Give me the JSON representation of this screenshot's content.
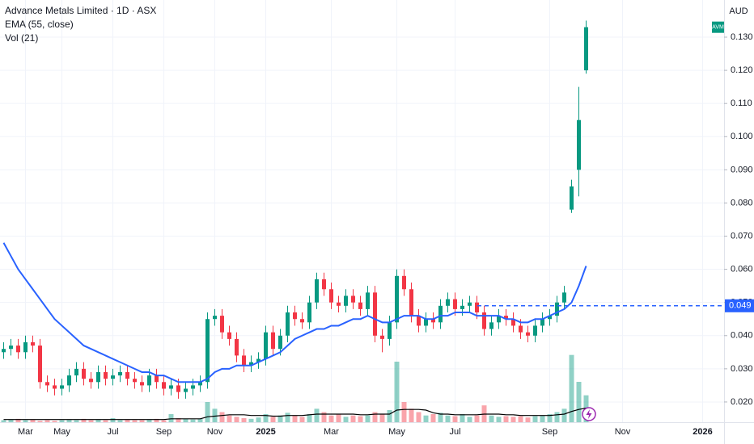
{
  "chart_data": {
    "type": "candlestick",
    "title": "Advance Metals Limited · 1D · ASX",
    "currency": "AUD",
    "symbol": "AVM",
    "categories": [
      null,
      null,
      null,
      "Mar",
      null,
      null,
      null,
      null,
      "May",
      null,
      null,
      null,
      null,
      null,
      null,
      "Jul",
      null,
      null,
      null,
      null,
      null,
      null,
      "Sep",
      null,
      null,
      null,
      null,
      null,
      null,
      "Nov",
      null,
      null,
      null,
      null,
      null,
      null,
      "2025",
      null,
      null,
      null,
      null,
      null,
      null,
      null,
      null,
      "Mar",
      null,
      null,
      null,
      null,
      null,
      null,
      null,
      null,
      "May",
      null,
      null,
      null,
      null,
      null,
      null,
      null,
      "Jul",
      null,
      null,
      null,
      null,
      null,
      null,
      null,
      null,
      null,
      null,
      null,
      null,
      "Sep",
      null,
      null,
      null,
      null,
      null,
      null,
      null,
      null,
      null,
      "Nov",
      null,
      null,
      null,
      null,
      null,
      null,
      null,
      null,
      null,
      null,
      "2026",
      null,
      null
    ],
    "open": [
      0.035,
      0.036,
      0.037,
      0.035,
      0.038,
      0.037,
      0.026,
      0.025,
      0.024,
      0.025,
      0.028,
      0.03,
      0.027,
      0.026,
      0.029,
      0.027,
      0.028,
      0.029,
      0.027,
      0.026,
      0.025,
      0.028,
      0.026,
      0.024,
      0.025,
      0.023,
      0.024,
      0.025,
      0.026,
      0.045,
      0.046,
      0.041,
      0.039,
      0.034,
      0.031,
      0.032,
      0.033,
      0.041,
      0.036,
      0.04,
      0.047,
      0.045,
      0.044,
      0.05,
      0.057,
      0.054,
      0.05,
      0.049,
      0.052,
      0.05,
      0.048,
      0.053,
      0.04,
      0.039,
      0.044,
      0.058,
      0.054,
      0.046,
      0.043,
      0.045,
      0.044,
      0.049,
      0.051,
      0.048,
      0.049,
      0.05,
      0.047,
      0.042,
      0.044,
      0.046,
      0.045,
      0.043,
      0.041,
      0.04,
      0.043,
      0.045,
      0.046,
      0.05,
      0.078,
      0.09,
      0.12,
      null,
      null,
      null,
      null,
      null,
      null,
      null,
      null,
      null,
      null,
      null,
      null,
      null,
      null,
      null,
      null,
      null,
      null
    ],
    "high": [
      0.038,
      0.039,
      0.039,
      0.04,
      0.04,
      0.039,
      0.028,
      0.027,
      0.027,
      0.03,
      0.032,
      0.032,
      0.029,
      0.031,
      0.031,
      0.03,
      0.031,
      0.031,
      0.029,
      0.028,
      0.03,
      0.03,
      0.028,
      0.027,
      0.027,
      0.026,
      0.027,
      0.028,
      0.047,
      0.048,
      0.048,
      0.043,
      0.041,
      0.036,
      0.034,
      0.035,
      0.043,
      0.043,
      0.042,
      0.049,
      0.049,
      0.047,
      0.052,
      0.059,
      0.059,
      0.056,
      0.052,
      0.054,
      0.054,
      0.052,
      0.055,
      0.055,
      0.042,
      0.046,
      0.06,
      0.06,
      0.056,
      0.048,
      0.047,
      0.047,
      0.051,
      0.053,
      0.053,
      0.051,
      0.052,
      0.052,
      0.049,
      0.046,
      0.048,
      0.048,
      0.047,
      0.045,
      0.043,
      0.045,
      0.047,
      0.048,
      0.052,
      0.055,
      0.087,
      0.115,
      0.135,
      null,
      null,
      null,
      null,
      null,
      null,
      null,
      null,
      null,
      null,
      null,
      null,
      null,
      null,
      null,
      null,
      null,
      null
    ],
    "low": [
      0.033,
      0.034,
      0.033,
      0.033,
      0.035,
      0.024,
      0.023,
      0.022,
      0.022,
      0.023,
      0.026,
      0.025,
      0.024,
      0.024,
      0.025,
      0.025,
      0.026,
      0.025,
      0.024,
      0.023,
      0.023,
      0.024,
      0.022,
      0.022,
      0.021,
      0.021,
      0.022,
      0.023,
      0.024,
      0.043,
      0.039,
      0.037,
      0.032,
      0.029,
      0.029,
      0.03,
      0.031,
      0.034,
      0.034,
      0.038,
      0.043,
      0.042,
      0.042,
      0.048,
      0.052,
      0.048,
      0.047,
      0.047,
      0.048,
      0.046,
      0.046,
      0.038,
      0.035,
      0.037,
      0.042,
      0.052,
      0.044,
      0.041,
      0.041,
      0.042,
      0.042,
      0.047,
      0.046,
      0.046,
      0.047,
      0.045,
      0.04,
      0.04,
      0.042,
      0.043,
      0.041,
      0.039,
      0.038,
      0.038,
      0.041,
      0.043,
      0.044,
      0.048,
      0.077,
      0.082,
      0.119,
      null,
      null,
      null,
      null,
      null,
      null,
      null,
      null,
      null,
      null,
      null,
      null,
      null,
      null,
      null,
      null,
      null,
      null
    ],
    "close": [
      0.036,
      0.037,
      0.035,
      0.038,
      0.037,
      0.026,
      0.025,
      0.024,
      0.025,
      0.028,
      0.03,
      0.027,
      0.026,
      0.029,
      0.027,
      0.028,
      0.029,
      0.027,
      0.026,
      0.025,
      0.028,
      0.026,
      0.024,
      0.025,
      0.023,
      0.024,
      0.025,
      0.026,
      0.045,
      0.046,
      0.041,
      0.039,
      0.034,
      0.031,
      0.032,
      0.033,
      0.041,
      0.036,
      0.04,
      0.047,
      0.045,
      0.044,
      0.05,
      0.057,
      0.054,
      0.05,
      0.049,
      0.052,
      0.05,
      0.048,
      0.053,
      0.04,
      0.039,
      0.044,
      0.058,
      0.054,
      0.046,
      0.043,
      0.045,
      0.044,
      0.049,
      0.051,
      0.048,
      0.049,
      0.05,
      0.047,
      0.042,
      0.044,
      0.046,
      0.045,
      0.043,
      0.041,
      0.04,
      0.043,
      0.045,
      0.046,
      0.05,
      0.053,
      0.085,
      0.105,
      0.133,
      null,
      null,
      null,
      null,
      null,
      null,
      null,
      null,
      null,
      null,
      null,
      null,
      null,
      null,
      null,
      null,
      null,
      null
    ],
    "up_color": "#089981",
    "down_color": "#f23645",
    "ema": {
      "name": "EMA (55, close)",
      "color": "#2962ff",
      "values": [
        0.068,
        0.064,
        0.06,
        0.057,
        0.054,
        0.051,
        0.048,
        0.045,
        0.043,
        0.041,
        0.039,
        0.037,
        0.036,
        0.035,
        0.034,
        0.033,
        0.032,
        0.031,
        0.03,
        0.029,
        0.029,
        0.028,
        0.028,
        0.027,
        0.026,
        0.026,
        0.026,
        0.026,
        0.027,
        0.029,
        0.03,
        0.03,
        0.031,
        0.031,
        0.031,
        0.032,
        0.033,
        0.034,
        0.035,
        0.037,
        0.039,
        0.04,
        0.041,
        0.042,
        0.042,
        0.043,
        0.043,
        0.044,
        0.045,
        0.045,
        0.046,
        0.045,
        0.044,
        0.044,
        0.045,
        0.046,
        0.046,
        0.046,
        0.045,
        0.045,
        0.046,
        0.046,
        0.047,
        0.047,
        0.047,
        0.046,
        0.046,
        0.046,
        0.046,
        0.045,
        0.045,
        0.044,
        0.044,
        0.045,
        0.045,
        0.046,
        0.047,
        0.048,
        0.05,
        0.055,
        0.061,
        null,
        null,
        null,
        null,
        null,
        null,
        null,
        null,
        null,
        null,
        null,
        null,
        null,
        null,
        null,
        null,
        null,
        null
      ]
    },
    "volume": {
      "name": "Vol (21)",
      "values": [
        0.3,
        0.4,
        0.5,
        0.3,
        0.4,
        0.2,
        0.3,
        0.2,
        0.3,
        0.4,
        0.3,
        0.5,
        0.3,
        0.4,
        0.3,
        0.6,
        0.3,
        0.4,
        0.3,
        0.3,
        0.4,
        0.5,
        0.3,
        1.2,
        0.6,
        0.5,
        0.4,
        0.5,
        3.0,
        2.0,
        1.5,
        1.0,
        0.8,
        0.6,
        0.5,
        0.7,
        1.2,
        0.8,
        1.0,
        1.4,
        1.0,
        0.8,
        1.2,
        2.0,
        1.5,
        1.0,
        1.2,
        0.8,
        1.0,
        0.9,
        1.0,
        1.5,
        1.2,
        1.8,
        9.0,
        3.0,
        2.0,
        1.5,
        1.0,
        1.2,
        1.4,
        1.0,
        0.9,
        1.2,
        0.8,
        1.0,
        2.5,
        1.0,
        0.8,
        0.9,
        0.8,
        0.9,
        0.7,
        0.9,
        1.0,
        1.2,
        1.5,
        2.0,
        10.0,
        6.0,
        4.0,
        null,
        null,
        null,
        null,
        null,
        null,
        null,
        null,
        null,
        null,
        null,
        null,
        null,
        null,
        null,
        null,
        null,
        null
      ],
      "ma": [
        0.4,
        0.4,
        0.4,
        0.4,
        0.4,
        0.4,
        0.4,
        0.4,
        0.4,
        0.4,
        0.4,
        0.4,
        0.4,
        0.4,
        0.4,
        0.4,
        0.4,
        0.4,
        0.4,
        0.4,
        0.4,
        0.4,
        0.4,
        0.5,
        0.5,
        0.5,
        0.5,
        0.5,
        0.8,
        0.9,
        1.0,
        1.1,
        1.1,
        1.1,
        1.0,
        1.0,
        1.0,
        0.9,
        0.9,
        1.0,
        1.0,
        1.0,
        1.1,
        1.2,
        1.2,
        1.2,
        1.2,
        1.2,
        1.2,
        1.1,
        1.1,
        1.2,
        1.2,
        1.2,
        1.8,
        1.9,
        1.9,
        1.9,
        1.8,
        1.4,
        1.2,
        1.2,
        1.1,
        1.1,
        1.1,
        1.1,
        1.2,
        1.2,
        1.2,
        1.1,
        1.1,
        1.0,
        1.0,
        1.0,
        1.0,
        1.0,
        1.1,
        1.2,
        1.6,
        1.9,
        2.1,
        null,
        null,
        null,
        null,
        null,
        null,
        null,
        null,
        null,
        null,
        null,
        null,
        null,
        null,
        null,
        null,
        null,
        null
      ],
      "ma_color": "#000000"
    },
    "vlim": [
      0,
      12
    ],
    "ylim": [
      0.0139,
      0.1412
    ],
    "yticks": [
      {
        "value": 0.02,
        "label": "0.020"
      },
      {
        "value": 0.03,
        "label": "0.030"
      },
      {
        "value": 0.04,
        "label": "0.040"
      },
      {
        "value": 0.05,
        "label": "0.050"
      },
      {
        "value": 0.06,
        "label": "0.060"
      },
      {
        "value": 0.07,
        "label": "0.070"
      },
      {
        "value": 0.08,
        "label": "0.080"
      },
      {
        "value": 0.09,
        "label": "0.090"
      },
      {
        "value": 0.1,
        "label": "0.100"
      },
      {
        "value": 0.11,
        "label": "0.110"
      },
      {
        "value": 0.12,
        "label": "0.120"
      },
      {
        "value": 0.13,
        "label": "0.130"
      }
    ],
    "hline": {
      "value": 0.049,
      "color": "#2962ff"
    },
    "grid": true
  }
}
